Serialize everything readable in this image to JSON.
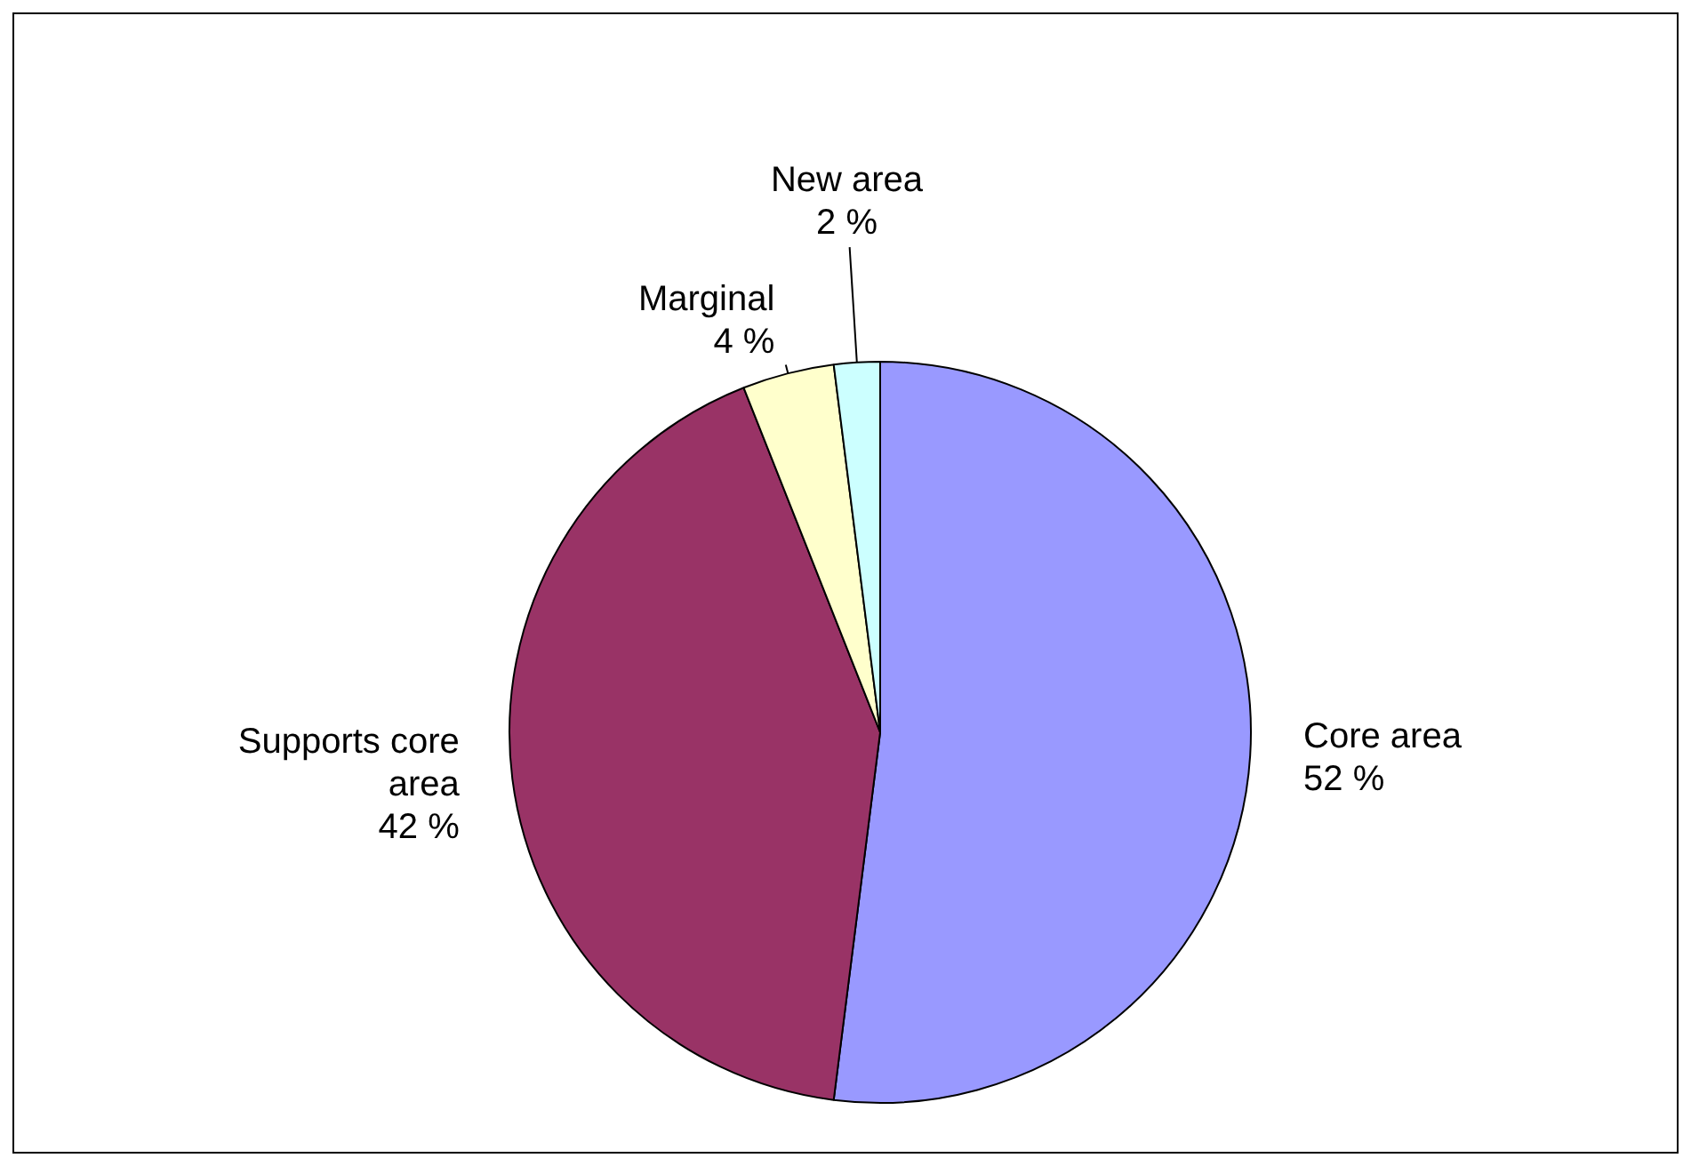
{
  "chart_data": {
    "type": "pie",
    "categories": [
      "Core area",
      "Supports core area",
      "Marginal",
      "New area"
    ],
    "values": [
      52,
      42,
      4,
      2
    ],
    "colors": [
      "#9999ff",
      "#993366",
      "#ffffcc",
      "#ccffff"
    ],
    "value_labels": [
      "52 %",
      "42 %",
      "4 %",
      "2 %"
    ]
  }
}
